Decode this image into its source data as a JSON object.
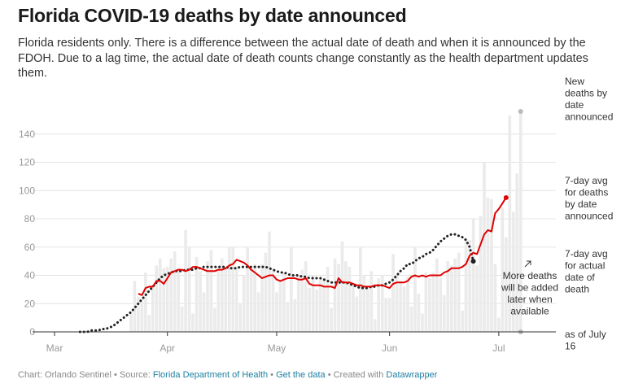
{
  "title": "Florida COVID-19 deaths by date announced",
  "subtitle": "Florida residents only. There is a difference between the actual date of death and when it is announced by the FDOH. Due to a lag time, the actual date of death counts change constantly as the health department updates them.",
  "footer": {
    "chart_credit": "Chart: Orlando Sentinel",
    "sep1": " • Source: ",
    "source": "Florida Department of Health",
    "sep2": " • ",
    "get_data": "Get the data",
    "sep3": " • Created with ",
    "tool": "Datawrapper"
  },
  "colors": {
    "bars": "#ebebeb",
    "avg_announced": "#e00000",
    "avg_actual": "#222222",
    "grid": "#e4e4e4"
  },
  "annotations": {
    "new_deaths": [
      "New",
      "deaths by",
      "date",
      "announced"
    ],
    "avg_announced": [
      "7-day avg",
      "for deaths",
      "by date",
      "announced"
    ],
    "avg_actual": [
      "7-day avg",
      "for actual",
      "date of",
      "death"
    ],
    "more_deaths": [
      "More deaths",
      "will be added",
      "later when",
      "available"
    ],
    "as_of": [
      "as of July",
      "16"
    ]
  },
  "chart_data": {
    "type": "bar",
    "x_start": "2020-03-01",
    "x_end": "2020-07-16",
    "xticks": [
      {
        "label": "Mar",
        "date": "2020-03-01"
      },
      {
        "label": "Apr",
        "date": "2020-04-01"
      },
      {
        "label": "May",
        "date": "2020-05-01"
      },
      {
        "label": "Jun",
        "date": "2020-06-01"
      },
      {
        "label": "Jul",
        "date": "2020-07-01"
      }
    ],
    "yticks": [
      0,
      20,
      40,
      60,
      80,
      100,
      120,
      140
    ],
    "ylim": [
      0,
      160
    ],
    "grid": true,
    "bars_start_date": "2020-03-22",
    "daily_deaths_by_date_announced": [
      14,
      36,
      25,
      21,
      42,
      12,
      32,
      47,
      52,
      45,
      46,
      52,
      57,
      45,
      18,
      72,
      60,
      13,
      53,
      43,
      28,
      50,
      58,
      17,
      46,
      52,
      46,
      60,
      60,
      46,
      20,
      40,
      60,
      45,
      48,
      28,
      48,
      56,
      71,
      45,
      28,
      37,
      42,
      21,
      60,
      23,
      39,
      44,
      50,
      31,
      40,
      30,
      37,
      38,
      46,
      17,
      52,
      48,
      64,
      50,
      46,
      33,
      25,
      60,
      40,
      31,
      43,
      9,
      38,
      40,
      24,
      24,
      55,
      40,
      36,
      32,
      39,
      18,
      60,
      27,
      13,
      42,
      38,
      42,
      52,
      38,
      26,
      50,
      47,
      52,
      56,
      15,
      66,
      65,
      80,
      47,
      82,
      120,
      95,
      94,
      48,
      10,
      88,
      67,
      153,
      85,
      112,
      156
    ],
    "series": [
      {
        "name": "7-day avg for deaths by date announced",
        "start_date": "2020-03-24",
        "values": [
          27,
          26,
          31,
          32,
          32,
          36,
          36,
          34,
          38,
          42,
          43,
          44,
          44,
          43,
          44,
          46,
          46,
          45,
          44,
          43,
          43,
          43,
          44,
          44,
          45,
          47,
          48,
          51,
          50,
          49,
          47,
          44,
          42,
          40,
          38,
          39,
          40,
          40,
          37,
          36,
          37,
          38,
          38,
          38,
          37,
          37,
          38,
          34,
          33,
          33,
          33,
          32,
          32,
          32,
          31,
          38,
          35,
          35,
          35,
          34,
          33,
          33,
          32,
          32,
          32,
          33,
          33,
          33,
          32,
          31,
          34,
          35,
          35,
          35,
          36,
          39,
          40,
          39,
          40,
          39,
          40,
          40,
          40,
          40,
          42,
          43,
          45,
          45,
          45,
          46,
          48,
          54,
          56,
          55,
          62,
          69,
          72,
          71,
          84,
          87,
          91,
          95
        ]
      },
      {
        "name": "7-day avg for actual date of death",
        "start_date": "2020-03-08",
        "values": [
          0,
          0,
          0,
          1,
          1,
          1,
          2,
          2,
          3,
          4,
          6,
          8,
          10,
          12,
          14,
          17,
          20,
          23,
          26,
          29,
          32,
          35,
          38,
          40,
          41,
          42,
          43,
          43,
          43,
          44,
          44,
          44,
          45,
          45,
          46,
          46,
          46,
          46,
          46,
          46,
          46,
          45,
          45,
          45,
          46,
          46,
          46,
          46,
          46,
          46,
          46,
          46,
          45,
          44,
          43,
          42,
          42,
          41,
          40,
          40,
          40,
          39,
          39,
          38,
          38,
          38,
          38,
          37,
          36,
          35,
          35,
          35,
          35,
          35,
          34,
          33,
          32,
          31,
          31,
          31,
          32,
          32,
          33,
          33,
          34,
          35,
          37,
          40,
          43,
          45,
          48,
          48,
          50,
          52,
          53,
          55,
          56,
          58,
          61,
          64,
          66,
          68,
          69,
          69,
          68,
          67,
          65,
          60,
          50
        ]
      }
    ],
    "final_values": {
      "new_deaths_by_date_announced": 156,
      "avg_announced": 95,
      "avg_actual": 50
    }
  }
}
